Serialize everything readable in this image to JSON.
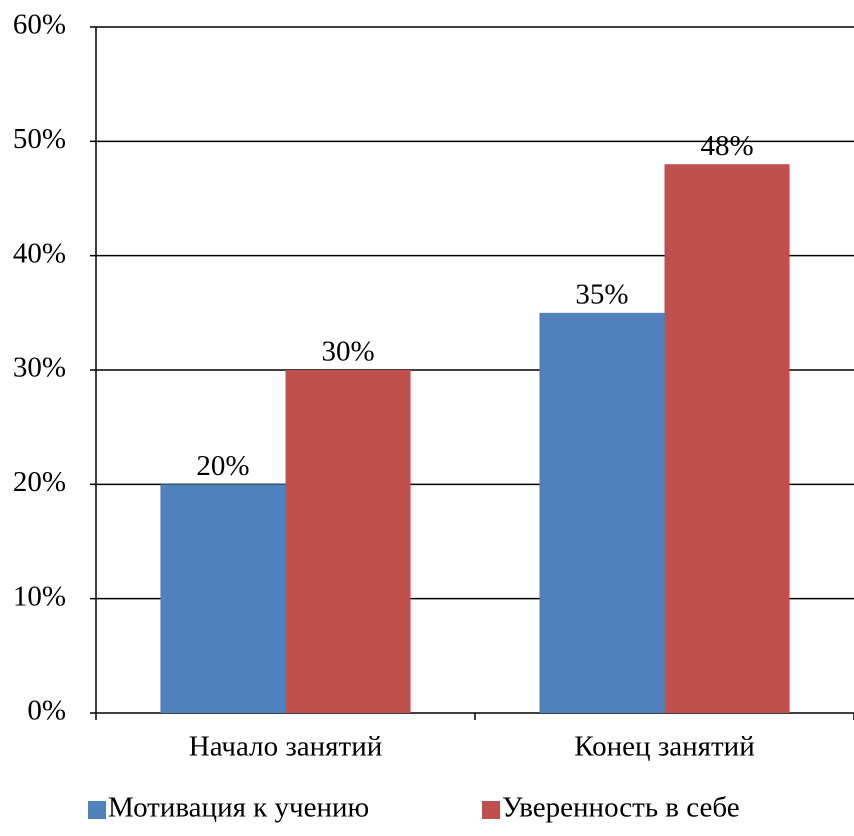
{
  "chart_data": {
    "type": "bar",
    "categories": [
      "Начало занятий",
      "Конец занятий"
    ],
    "series": [
      {
        "name": "Мотивация к учению",
        "color": "#4f81bd",
        "values": [
          20,
          35
        ],
        "value_labels": [
          "20%",
          "35%"
        ]
      },
      {
        "name": "Уверенность в себе",
        "color": "#c0504d",
        "values": [
          30,
          48
        ],
        "value_labels": [
          "30%",
          "48%"
        ]
      }
    ],
    "ylim": [
      0,
      60
    ],
    "yticks": [
      {
        "value": 0,
        "label": "0%"
      },
      {
        "value": 10,
        "label": "10%"
      },
      {
        "value": 20,
        "label": "20%"
      },
      {
        "value": 30,
        "label": "30%"
      },
      {
        "value": 40,
        "label": "40%"
      },
      {
        "value": 50,
        "label": "50%"
      },
      {
        "value": 60,
        "label": "60%"
      }
    ],
    "grid": true,
    "legend": "bottom"
  }
}
